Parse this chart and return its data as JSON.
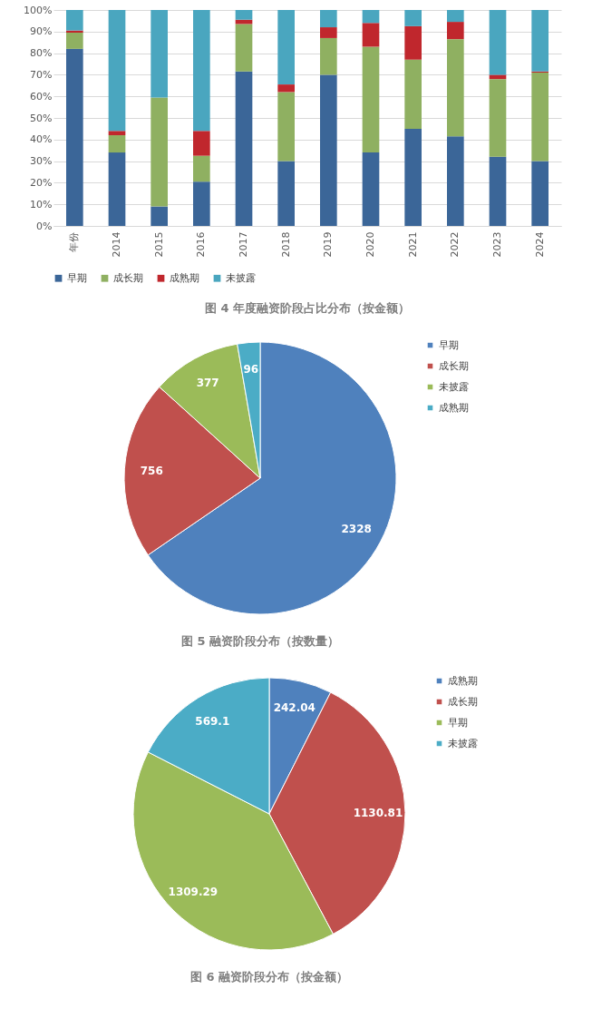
{
  "chart_data": [
    {
      "type": "bar",
      "title": "图 4 年度融资阶段占比分布（按金额）",
      "stacked": true,
      "categories": [
        "年份",
        "2014",
        "2015",
        "2016",
        "2017",
        "2018",
        "2019",
        "2020",
        "2021",
        "2022",
        "2023",
        "2024"
      ],
      "series": [
        {
          "name": "早期",
          "color": "#3b6698",
          "values": [
            82,
            34,
            9,
            20.5,
            71.5,
            30,
            70,
            34,
            45,
            41.5,
            32,
            30
          ]
        },
        {
          "name": "成长期",
          "color": "#8fb061",
          "values": [
            7.5,
            8,
            50.5,
            12,
            22,
            32,
            17,
            49,
            32,
            45,
            36,
            41
          ]
        },
        {
          "name": "成熟期",
          "color": "#c0272d",
          "values": [
            1,
            2,
            0,
            11.5,
            2,
            3.5,
            5,
            11,
            15.5,
            8,
            2,
            0.5
          ]
        },
        {
          "name": "未披露",
          "color": "#4aa6bf",
          "values": [
            9.5,
            56,
            40.5,
            56,
            4.5,
            34.5,
            8,
            6,
            7.5,
            5.5,
            30,
            28.5
          ]
        }
      ],
      "ylim": [
        0,
        100
      ],
      "yticks": [
        {
          "value": 0,
          "label": "0%"
        },
        {
          "value": 10,
          "label": "10%"
        },
        {
          "value": 20,
          "label": "20%"
        },
        {
          "value": 30,
          "label": "30%"
        },
        {
          "value": 40,
          "label": "40%"
        },
        {
          "value": 50,
          "label": "50%"
        },
        {
          "value": 60,
          "label": "60%"
        },
        {
          "value": 70,
          "label": "70%"
        },
        {
          "value": 80,
          "label": "80%"
        },
        {
          "value": 90,
          "label": "90%"
        },
        {
          "value": 100,
          "label": "100%"
        }
      ],
      "grid": "y",
      "legend": "bottom"
    },
    {
      "type": "pie",
      "title": "图 5 融资阶段分布（按数量）",
      "categories": [
        "早期",
        "成长期",
        "未披露",
        "成熟期"
      ],
      "values": [
        2328,
        756,
        377,
        96
      ],
      "colors": [
        "#4f81bd",
        "#c0504d",
        "#9bbb59",
        "#4bacc6"
      ],
      "data_labels": true,
      "legend": "right"
    },
    {
      "type": "pie",
      "title": "图 6 融资阶段分布（按金额）",
      "categories": [
        "成熟期",
        "成长期",
        "早期",
        "未披露"
      ],
      "values": [
        242.04,
        1130.81,
        1309.29,
        569.1
      ],
      "colors": [
        "#4f81bd",
        "#c0504d",
        "#9bbb59",
        "#4bacc6"
      ],
      "data_labels": true,
      "legend": "right"
    }
  ]
}
